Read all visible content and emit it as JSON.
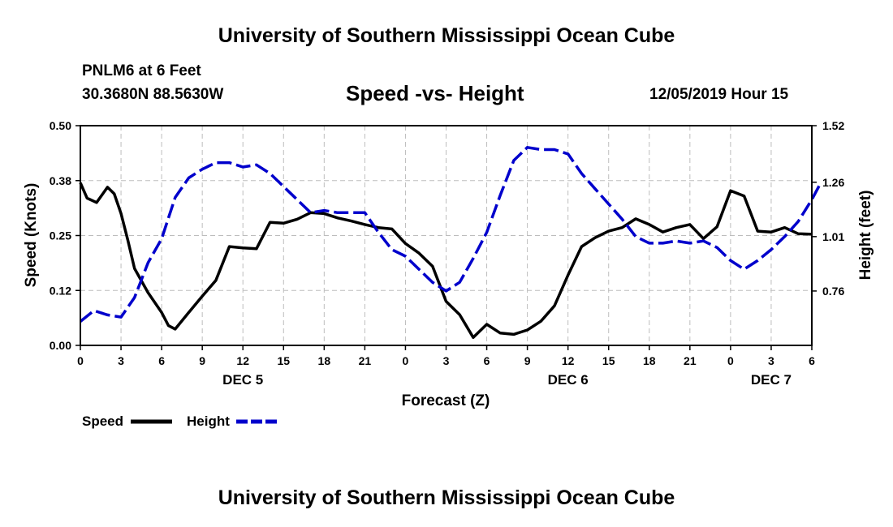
{
  "header": {
    "title": "University of Southern Mississippi Ocean Cube",
    "station": "PNLM6 at 6 Feet",
    "coords": "30.3680N 88.5630W",
    "timestamp": "12/05/2019 Hour 15"
  },
  "footer": {
    "title": "University of Southern Mississippi Ocean Cube"
  },
  "chart_data": {
    "type": "line",
    "title": "Speed -vs- Height",
    "xlabel": "Forecast (Z)",
    "ylabel_left": "Speed (Knots)",
    "ylabel_right": "Height (feet)",
    "xlim": [
      0,
      54
    ],
    "ylim_left": [
      0,
      0.5
    ],
    "ylim_right": [
      0.51,
      1.52
    ],
    "grid": true,
    "x_ticks": [
      0,
      3,
      6,
      9,
      12,
      15,
      18,
      21,
      24,
      27,
      30,
      33,
      36,
      39,
      42,
      45,
      48,
      51,
      54
    ],
    "x_tick_labels": [
      "0",
      "3",
      "6",
      "9",
      "12",
      "15",
      "18",
      "21",
      "0",
      "3",
      "6",
      "9",
      "12",
      "15",
      "18",
      "21",
      "0",
      "3",
      "6"
    ],
    "day_labels": [
      {
        "x": 12,
        "label": "DEC 5"
      },
      {
        "x": 36,
        "label": "DEC 6"
      },
      {
        "x": 51,
        "label": "DEC 7"
      }
    ],
    "y_ticks_left": [
      0,
      0.125,
      0.25,
      0.375,
      0.5
    ],
    "y_tick_labels_left": [
      "0.00",
      "0.12",
      "0.25",
      "0.38",
      "0.50"
    ],
    "y_ticks_right": [
      0.76,
      1.01,
      1.26,
      1.52
    ],
    "y_tick_labels_right": [
      "0.76",
      "1.01",
      "1.26",
      "1.52"
    ],
    "legend": {
      "position": "bottom-left",
      "entries": [
        "Speed",
        "Height"
      ]
    },
    "series": [
      {
        "name": "Speed",
        "axis": "left",
        "color": "#000000",
        "dash": "solid",
        "points": [
          [
            0,
            0.37
          ],
          [
            0.5,
            0.335
          ],
          [
            1.2,
            0.325
          ],
          [
            2,
            0.36
          ],
          [
            2.5,
            0.345
          ],
          [
            3,
            0.3
          ],
          [
            3.5,
            0.24
          ],
          [
            4,
            0.175
          ],
          [
            5,
            0.12
          ],
          [
            6,
            0.075
          ],
          [
            6.5,
            0.045
          ],
          [
            7,
            0.037
          ],
          [
            8,
            0.075
          ],
          [
            9,
            0.112
          ],
          [
            10,
            0.148
          ],
          [
            11,
            0.225
          ],
          [
            12,
            0.222
          ],
          [
            13,
            0.22
          ],
          [
            14,
            0.28
          ],
          [
            15,
            0.278
          ],
          [
            16,
            0.287
          ],
          [
            17,
            0.302
          ],
          [
            18,
            0.3
          ],
          [
            19,
            0.29
          ],
          [
            20,
            0.283
          ],
          [
            21,
            0.275
          ],
          [
            22,
            0.268
          ],
          [
            23,
            0.265
          ],
          [
            24,
            0.232
          ],
          [
            25,
            0.21
          ],
          [
            26,
            0.18
          ],
          [
            27,
            0.1
          ],
          [
            28,
            0.07
          ],
          [
            29,
            0.018
          ],
          [
            30,
            0.048
          ],
          [
            31,
            0.028
          ],
          [
            32,
            0.025
          ],
          [
            33,
            0.035
          ],
          [
            34,
            0.055
          ],
          [
            35,
            0.09
          ],
          [
            36,
            0.16
          ],
          [
            37,
            0.225
          ],
          [
            38,
            0.245
          ],
          [
            39,
            0.26
          ],
          [
            40,
            0.268
          ],
          [
            41,
            0.288
          ],
          [
            42,
            0.275
          ],
          [
            43,
            0.258
          ],
          [
            44,
            0.268
          ],
          [
            45,
            0.275
          ],
          [
            46,
            0.243
          ],
          [
            47,
            0.27
          ],
          [
            48,
            0.352
          ],
          [
            49,
            0.34
          ],
          [
            50,
            0.26
          ],
          [
            51,
            0.258
          ],
          [
            52,
            0.268
          ],
          [
            53,
            0.254
          ],
          [
            54,
            0.253
          ]
        ]
      },
      {
        "name": "Height",
        "axis": "right",
        "color": "#0000cc",
        "dash": "dashed",
        "points": [
          [
            0,
            0.62
          ],
          [
            1,
            0.67
          ],
          [
            2,
            0.65
          ],
          [
            3,
            0.64
          ],
          [
            4,
            0.73
          ],
          [
            5,
            0.89
          ],
          [
            6,
            1.0
          ],
          [
            7,
            1.19
          ],
          [
            8,
            1.28
          ],
          [
            9,
            1.32
          ],
          [
            10,
            1.35
          ],
          [
            11,
            1.35
          ],
          [
            12,
            1.33
          ],
          [
            13,
            1.34
          ],
          [
            14,
            1.3
          ],
          [
            15,
            1.24
          ],
          [
            16,
            1.18
          ],
          [
            17,
            1.12
          ],
          [
            18,
            1.13
          ],
          [
            19,
            1.12
          ],
          [
            20,
            1.12
          ],
          [
            21,
            1.12
          ],
          [
            22,
            1.03
          ],
          [
            23,
            0.95
          ],
          [
            24,
            0.92
          ],
          [
            25,
            0.86
          ],
          [
            26,
            0.8
          ],
          [
            27,
            0.76
          ],
          [
            28,
            0.8
          ],
          [
            29,
            0.91
          ],
          [
            30,
            1.03
          ],
          [
            31,
            1.2
          ],
          [
            32,
            1.36
          ],
          [
            33,
            1.42
          ],
          [
            34,
            1.41
          ],
          [
            35,
            1.41
          ],
          [
            36,
            1.39
          ],
          [
            37,
            1.3
          ],
          [
            38,
            1.23
          ],
          [
            39,
            1.16
          ],
          [
            40,
            1.09
          ],
          [
            41,
            1.01
          ],
          [
            42,
            0.98
          ],
          [
            43,
            0.98
          ],
          [
            44,
            0.99
          ],
          [
            45,
            0.98
          ],
          [
            46,
            0.99
          ],
          [
            47,
            0.96
          ],
          [
            48,
            0.9
          ],
          [
            49,
            0.86
          ],
          [
            50,
            0.9
          ],
          [
            51,
            0.95
          ],
          [
            52,
            1.01
          ],
          [
            53,
            1.08
          ],
          [
            54,
            1.18
          ],
          [
            54.6,
            1.25
          ]
        ]
      }
    ]
  }
}
